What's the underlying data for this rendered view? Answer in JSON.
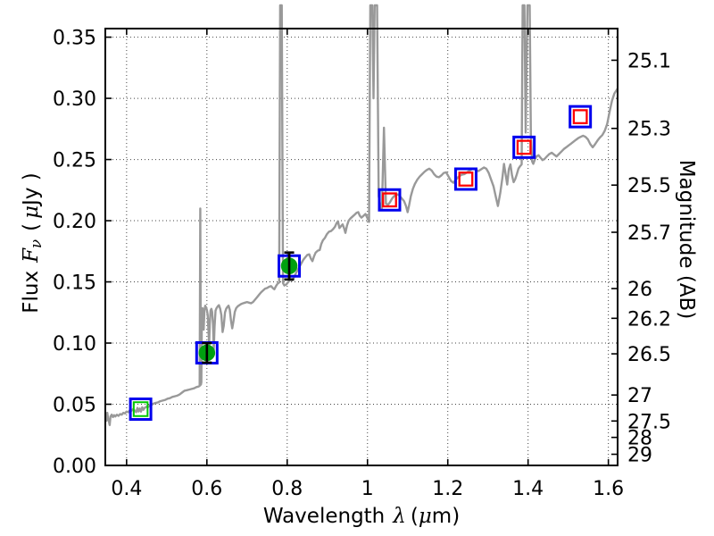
{
  "figure": {
    "xlabel": {
      "text": "Wavelength",
      "symbol": "λ",
      "open": "(",
      "mu": "μ",
      "close": "m)"
    },
    "ylabel_left": {
      "text": "Flux",
      "symbol": "F",
      "subscript": "ν",
      "open": "(",
      "mu": "μ",
      "close": "Jy )"
    },
    "ylabel_right": {
      "text": "Magnitude (AB)"
    }
  },
  "chart_data": {
    "type": "line",
    "title": "",
    "xlabel": "Wavelength λ (μm)",
    "ylabel_left": "Flux Fν ( μJy )",
    "ylabel_right": "Magnitude (AB)",
    "xlim": [
      0.347,
      1.623
    ],
    "ylim": [
      0,
      0.357
    ],
    "grid": true,
    "x_ticks": [
      0.4,
      0.6,
      0.8,
      1.0,
      1.2,
      1.4,
      1.6
    ],
    "x_tick_labels": [
      "0.4",
      "0.6",
      "0.8",
      "1",
      "1.2",
      "1.4",
      "1.6"
    ],
    "y_ticks_left": [
      0.0,
      0.05,
      0.1,
      0.15,
      0.2,
      0.25,
      0.3,
      0.35
    ],
    "y_tick_labels_left": [
      "0.00",
      "0.05",
      "0.10",
      "0.15",
      "0.20",
      "0.25",
      "0.30",
      "0.35"
    ],
    "y_ticks_right_mag": [
      25.1,
      25.3,
      25.5,
      25.7,
      26,
      26.2,
      26.5,
      27,
      27.5,
      28,
      29
    ],
    "y_tick_labels_right": [
      "25.1",
      "25.3",
      "25.5",
      "25.7",
      "26",
      "26.2",
      "26.5",
      "27",
      "27.5",
      "28",
      "29"
    ],
    "ab_zeropoint_ujy": 23.9,
    "colors": {
      "spectrum": "#999999",
      "model_square": "#0000ee",
      "observed_circle": "#00a010",
      "observed_square_green": "#00c800",
      "observed_square_red": "#ff0000",
      "errorbar": "#000000"
    },
    "model_photometry_blue_squares": [
      [
        0.435,
        0.046
      ],
      [
        0.6,
        0.092
      ],
      [
        0.805,
        0.163
      ],
      [
        1.055,
        0.217
      ],
      [
        1.245,
        0.234
      ],
      [
        1.39,
        0.26
      ],
      [
        1.53,
        0.285
      ]
    ],
    "observed_optical_green": [
      {
        "x": 0.435,
        "y": 0.046,
        "marker": "open-square",
        "yerr": 0
      },
      {
        "x": 0.6,
        "y": 0.092,
        "marker": "filled-circle",
        "yerr": 0.008
      },
      {
        "x": 0.805,
        "y": 0.163,
        "marker": "filled-circle",
        "yerr": 0.011
      }
    ],
    "observed_infrared_red_squares": [
      [
        1.055,
        0.217
      ],
      [
        1.245,
        0.234
      ],
      [
        1.39,
        0.26
      ],
      [
        1.53,
        0.285
      ]
    ],
    "spectrum": [
      [
        0.347,
        0.0395
      ],
      [
        0.35,
        0.0365
      ],
      [
        0.352,
        0.043
      ],
      [
        0.354,
        0.0385
      ],
      [
        0.356,
        0.036
      ],
      [
        0.358,
        0.033
      ],
      [
        0.36,
        0.04
      ],
      [
        0.363,
        0.0415
      ],
      [
        0.366,
        0.0395
      ],
      [
        0.369,
        0.041
      ],
      [
        0.372,
        0.04
      ],
      [
        0.376,
        0.0415
      ],
      [
        0.38,
        0.0405
      ],
      [
        0.384,
        0.042
      ],
      [
        0.388,
        0.0415
      ],
      [
        0.392,
        0.043
      ],
      [
        0.396,
        0.0425
      ],
      [
        0.4,
        0.044
      ],
      [
        0.404,
        0.0435
      ],
      [
        0.408,
        0.045
      ],
      [
        0.412,
        0.0445
      ],
      [
        0.416,
        0.046
      ],
      [
        0.42,
        0.045
      ],
      [
        0.424,
        0.0435
      ],
      [
        0.427,
        0.047
      ],
      [
        0.43,
        0.044
      ],
      [
        0.433,
        0.0465
      ],
      [
        0.436,
        0.044
      ],
      [
        0.439,
        0.0475
      ],
      [
        0.442,
        0.0455
      ],
      [
        0.445,
        0.047
      ],
      [
        0.449,
        0.048
      ],
      [
        0.453,
        0.0475
      ],
      [
        0.457,
        0.049
      ],
      [
        0.462,
        0.0495
      ],
      [
        0.467,
        0.0505
      ],
      [
        0.472,
        0.051
      ],
      [
        0.478,
        0.0515
      ],
      [
        0.484,
        0.0525
      ],
      [
        0.49,
        0.053
      ],
      [
        0.496,
        0.0535
      ],
      [
        0.502,
        0.0545
      ],
      [
        0.508,
        0.055
      ],
      [
        0.514,
        0.056
      ],
      [
        0.52,
        0.0565
      ],
      [
        0.526,
        0.057
      ],
      [
        0.532,
        0.058
      ],
      [
        0.538,
        0.0595
      ],
      [
        0.544,
        0.061
      ],
      [
        0.55,
        0.0615
      ],
      [
        0.556,
        0.062
      ],
      [
        0.562,
        0.0625
      ],
      [
        0.568,
        0.063
      ],
      [
        0.574,
        0.064
      ],
      [
        0.579,
        0.0645
      ],
      [
        0.582,
        0.065
      ],
      [
        0.5835,
        0.21
      ],
      [
        0.585,
        0.066
      ],
      [
        0.5862,
        0.068
      ],
      [
        0.5875,
        0.124
      ],
      [
        0.589,
        0.1285
      ],
      [
        0.5905,
        0.123
      ],
      [
        0.592,
        0.111
      ],
      [
        0.594,
        0.127
      ],
      [
        0.596,
        0.1305
      ],
      [
        0.598,
        0.129
      ],
      [
        0.6,
        0.127
      ],
      [
        0.602,
        0.123
      ],
      [
        0.604,
        0.11
      ],
      [
        0.6055,
        0.0985
      ],
      [
        0.607,
        0.115
      ],
      [
        0.609,
        0.1265
      ],
      [
        0.611,
        0.128
      ],
      [
        0.613,
        0.1255
      ],
      [
        0.615,
        0.116
      ],
      [
        0.617,
        0.094
      ],
      [
        0.619,
        0.113
      ],
      [
        0.6215,
        0.1265
      ],
      [
        0.624,
        0.1285
      ],
      [
        0.627,
        0.13
      ],
      [
        0.63,
        0.131
      ],
      [
        0.633,
        0.128
      ],
      [
        0.636,
        0.123
      ],
      [
        0.639,
        0.109
      ],
      [
        0.642,
        0.114
      ],
      [
        0.645,
        0.125
      ],
      [
        0.648,
        0.128
      ],
      [
        0.651,
        0.1295
      ],
      [
        0.654,
        0.1305
      ],
      [
        0.657,
        0.127
      ],
      [
        0.66,
        0.1185
      ],
      [
        0.663,
        0.112
      ],
      [
        0.666,
        0.1175
      ],
      [
        0.6695,
        0.1255
      ],
      [
        0.673,
        0.1285
      ],
      [
        0.677,
        0.13
      ],
      [
        0.681,
        0.131
      ],
      [
        0.6855,
        0.132
      ],
      [
        0.69,
        0.1325
      ],
      [
        0.695,
        0.133
      ],
      [
        0.7,
        0.1335
      ],
      [
        0.705,
        0.133
      ],
      [
        0.71,
        0.1325
      ],
      [
        0.715,
        0.1335
      ],
      [
        0.72,
        0.1355
      ],
      [
        0.725,
        0.1375
      ],
      [
        0.73,
        0.1395
      ],
      [
        0.735,
        0.1415
      ],
      [
        0.74,
        0.143
      ],
      [
        0.745,
        0.1445
      ],
      [
        0.75,
        0.145
      ],
      [
        0.755,
        0.146
      ],
      [
        0.76,
        0.1465
      ],
      [
        0.764,
        0.145
      ],
      [
        0.768,
        0.144
      ],
      [
        0.772,
        0.1465
      ],
      [
        0.776,
        0.1485
      ],
      [
        0.78,
        0.1495
      ],
      [
        0.7825,
        0.376
      ],
      [
        0.7865,
        0.376
      ],
      [
        0.7895,
        0.149
      ],
      [
        0.793,
        0.147
      ],
      [
        0.798,
        0.148
      ],
      [
        0.803,
        0.15
      ],
      [
        0.808,
        0.152
      ],
      [
        0.812,
        0.151
      ],
      [
        0.816,
        0.153
      ],
      [
        0.82,
        0.156
      ],
      [
        0.825,
        0.159
      ],
      [
        0.83,
        0.162
      ],
      [
        0.835,
        0.165
      ],
      [
        0.84,
        0.168
      ],
      [
        0.845,
        0.17
      ],
      [
        0.85,
        0.172
      ],
      [
        0.855,
        0.1725
      ],
      [
        0.859,
        0.169
      ],
      [
        0.863,
        0.167
      ],
      [
        0.867,
        0.171
      ],
      [
        0.871,
        0.174
      ],
      [
        0.876,
        0.1755
      ],
      [
        0.881,
        0.176
      ],
      [
        0.885,
        0.181
      ],
      [
        0.889,
        0.184
      ],
      [
        0.894,
        0.186
      ],
      [
        0.899,
        0.189
      ],
      [
        0.904,
        0.191
      ],
      [
        0.909,
        0.1915
      ],
      [
        0.914,
        0.193
      ],
      [
        0.919,
        0.195
      ],
      [
        0.923,
        0.198
      ],
      [
        0.9265,
        0.1995
      ],
      [
        0.93,
        0.194
      ],
      [
        0.934,
        0.1955
      ],
      [
        0.938,
        0.197
      ],
      [
        0.942,
        0.1935
      ],
      [
        0.945,
        0.19
      ],
      [
        0.949,
        0.196
      ],
      [
        0.953,
        0.2
      ],
      [
        0.958,
        0.202
      ],
      [
        0.963,
        0.2035
      ],
      [
        0.968,
        0.205
      ],
      [
        0.973,
        0.2065
      ],
      [
        0.977,
        0.207
      ],
      [
        0.981,
        0.204
      ],
      [
        0.985,
        0.2025
      ],
      [
        0.99,
        0.204
      ],
      [
        0.995,
        0.2055
      ],
      [
        1.0,
        0.202
      ],
      [
        1.004,
        0.199
      ],
      [
        1.007,
        0.376
      ],
      [
        1.012,
        0.376
      ],
      [
        1.015,
        0.3
      ],
      [
        1.018,
        0.376
      ],
      [
        1.024,
        0.376
      ],
      [
        1.028,
        0.22
      ],
      [
        1.032,
        0.212
      ],
      [
        1.036,
        0.21
      ],
      [
        1.041,
        0.276
      ],
      [
        1.046,
        0.214
      ],
      [
        1.051,
        0.213
      ],
      [
        1.056,
        0.215
      ],
      [
        1.061,
        0.218
      ],
      [
        1.066,
        0.22
      ],
      [
        1.071,
        0.221
      ],
      [
        1.076,
        0.2215
      ],
      [
        1.081,
        0.22
      ],
      [
        1.086,
        0.218
      ],
      [
        1.091,
        0.216
      ],
      [
        1.096,
        0.212
      ],
      [
        1.1,
        0.207
      ],
      [
        1.104,
        0.213
      ],
      [
        1.108,
        0.22
      ],
      [
        1.113,
        0.226
      ],
      [
        1.118,
        0.23
      ],
      [
        1.124,
        0.2335
      ],
      [
        1.13,
        0.236
      ],
      [
        1.136,
        0.238
      ],
      [
        1.142,
        0.24
      ],
      [
        1.148,
        0.2415
      ],
      [
        1.154,
        0.2425
      ],
      [
        1.16,
        0.241
      ],
      [
        1.166,
        0.238
      ],
      [
        1.172,
        0.236
      ],
      [
        1.178,
        0.2355
      ],
      [
        1.184,
        0.237
      ],
      [
        1.19,
        0.239
      ],
      [
        1.196,
        0.2395
      ],
      [
        1.202,
        0.236
      ],
      [
        1.208,
        0.2325
      ],
      [
        1.214,
        0.231
      ],
      [
        1.22,
        0.2335
      ],
      [
        1.227,
        0.236
      ],
      [
        1.234,
        0.2375
      ],
      [
        1.241,
        0.238
      ],
      [
        1.248,
        0.2395
      ],
      [
        1.255,
        0.241
      ],
      [
        1.262,
        0.2425
      ],
      [
        1.269,
        0.242
      ],
      [
        1.276,
        0.2405
      ],
      [
        1.283,
        0.242
      ],
      [
        1.29,
        0.2435
      ],
      [
        1.296,
        0.2425
      ],
      [
        1.302,
        0.239
      ],
      [
        1.308,
        0.2335
      ],
      [
        1.314,
        0.228
      ],
      [
        1.32,
        0.219
      ],
      [
        1.325,
        0.212
      ],
      [
        1.331,
        0.223
      ],
      [
        1.336,
        0.235
      ],
      [
        1.34,
        0.2465
      ],
      [
        1.344,
        0.238
      ],
      [
        1.348,
        0.2295
      ],
      [
        1.352,
        0.242
      ],
      [
        1.356,
        0.246
      ],
      [
        1.36,
        0.237
      ],
      [
        1.364,
        0.2315
      ],
      [
        1.368,
        0.234
      ],
      [
        1.372,
        0.238
      ],
      [
        1.376,
        0.2425
      ],
      [
        1.38,
        0.2445
      ],
      [
        1.384,
        0.246
      ],
      [
        1.3865,
        0.376
      ],
      [
        1.391,
        0.376
      ],
      [
        1.394,
        0.272
      ],
      [
        1.3985,
        0.376
      ],
      [
        1.404,
        0.376
      ],
      [
        1.407,
        0.27
      ],
      [
        1.41,
        0.2485
      ],
      [
        1.413,
        0.2465
      ],
      [
        1.417,
        0.25
      ],
      [
        1.421,
        0.2525
      ],
      [
        1.426,
        0.2535
      ],
      [
        1.431,
        0.2515
      ],
      [
        1.436,
        0.2495
      ],
      [
        1.441,
        0.2505
      ],
      [
        1.447,
        0.2525
      ],
      [
        1.453,
        0.2545
      ],
      [
        1.459,
        0.2555
      ],
      [
        1.465,
        0.254
      ],
      [
        1.471,
        0.2525
      ],
      [
        1.477,
        0.2545
      ],
      [
        1.483,
        0.2565
      ],
      [
        1.489,
        0.2585
      ],
      [
        1.495,
        0.26
      ],
      [
        1.501,
        0.2615
      ],
      [
        1.507,
        0.263
      ],
      [
        1.513,
        0.2645
      ],
      [
        1.519,
        0.266
      ],
      [
        1.525,
        0.2675
      ],
      [
        1.531,
        0.2685
      ],
      [
        1.537,
        0.2695
      ],
      [
        1.543,
        0.2685
      ],
      [
        1.549,
        0.2665
      ],
      [
        1.555,
        0.2625
      ],
      [
        1.561,
        0.26
      ],
      [
        1.567,
        0.2625
      ],
      [
        1.573,
        0.2655
      ],
      [
        1.579,
        0.268
      ],
      [
        1.585,
        0.27
      ],
      [
        1.591,
        0.2735
      ],
      [
        1.597,
        0.279
      ],
      [
        1.603,
        0.289
      ],
      [
        1.609,
        0.298
      ],
      [
        1.615,
        0.304
      ],
      [
        1.623,
        0.308
      ]
    ]
  }
}
